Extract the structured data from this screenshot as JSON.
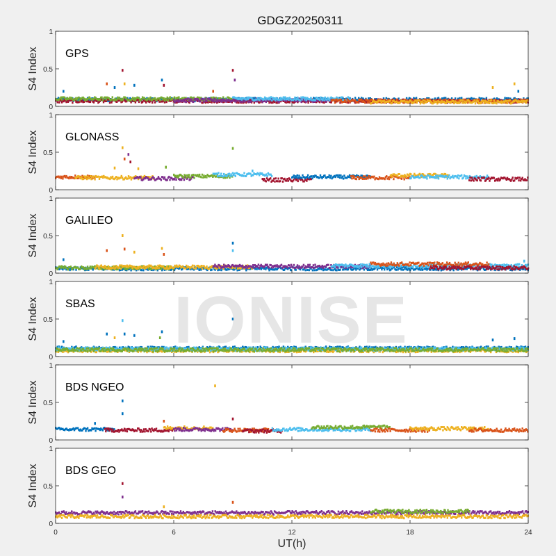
{
  "title": "GDGZ20250311",
  "watermark": "IONISE",
  "colors": {
    "blue": "#0072BD",
    "orange": "#D95319",
    "yellow": "#EDB120",
    "purple": "#7E2F8E",
    "green": "#77AC30",
    "cyan": "#4DBEEE",
    "maroon": "#A2142F"
  },
  "chart_data": [
    {
      "type": "scatter",
      "panel_label": "GPS",
      "ylabel": "S4 Index",
      "xlabel": "",
      "xlim": [
        0,
        24
      ],
      "ylim": [
        0,
        1
      ],
      "yticks": [
        0,
        0.5,
        1
      ],
      "ytick_labels": [
        "0",
        "0.5",
        "1"
      ],
      "baseline": 0.08,
      "segments": [
        {
          "x0": 0,
          "x1": 24,
          "y": 0.09,
          "color": "#0072BD"
        },
        {
          "x0": 0,
          "x1": 24,
          "y": 0.07,
          "color": "#A2142F"
        },
        {
          "x0": 0,
          "x1": 9,
          "y": 0.1,
          "color": "#77AC30"
        },
        {
          "x0": 6,
          "x1": 14,
          "y": 0.08,
          "color": "#7E2F8E"
        },
        {
          "x0": 9,
          "x1": 15,
          "y": 0.1,
          "color": "#4DBEEE"
        },
        {
          "x0": 14,
          "x1": 24,
          "y": 0.07,
          "color": "#D95319"
        },
        {
          "x0": 16,
          "x1": 24,
          "y": 0.06,
          "color": "#EDB120"
        }
      ],
      "spikes": [
        {
          "x": 0.4,
          "y": 0.2,
          "color": "#0072BD"
        },
        {
          "x": 2.6,
          "y": 0.3,
          "color": "#D95319"
        },
        {
          "x": 3.0,
          "y": 0.25,
          "color": "#0072BD"
        },
        {
          "x": 3.4,
          "y": 0.48,
          "color": "#A2142F"
        },
        {
          "x": 3.5,
          "y": 0.3,
          "color": "#EDB120"
        },
        {
          "x": 4.0,
          "y": 0.28,
          "color": "#0072BD"
        },
        {
          "x": 5.4,
          "y": 0.35,
          "color": "#0072BD"
        },
        {
          "x": 5.5,
          "y": 0.28,
          "color": "#A2142F"
        },
        {
          "x": 8.0,
          "y": 0.2,
          "color": "#D95319"
        },
        {
          "x": 9.0,
          "y": 0.48,
          "color": "#A2142F"
        },
        {
          "x": 9.1,
          "y": 0.35,
          "color": "#7E2F8E"
        },
        {
          "x": 22.2,
          "y": 0.25,
          "color": "#EDB120"
        },
        {
          "x": 23.3,
          "y": 0.3,
          "color": "#EDB120"
        },
        {
          "x": 23.5,
          "y": 0.2,
          "color": "#0072BD"
        }
      ]
    },
    {
      "type": "scatter",
      "panel_label": "GLONASS",
      "ylabel": "S4 Index",
      "xlabel": "",
      "xlim": [
        0,
        24
      ],
      "ylim": [
        0,
        1
      ],
      "yticks": [
        0,
        0.5,
        1
      ],
      "ytick_labels": [
        "0",
        "0.5",
        "1"
      ],
      "baseline": 0.15,
      "segments": [
        {
          "x0": 0,
          "x1": 2,
          "y": 0.17,
          "color": "#D95319"
        },
        {
          "x0": 1,
          "x1": 5,
          "y": 0.16,
          "color": "#EDB120"
        },
        {
          "x0": 4,
          "x1": 7,
          "y": 0.15,
          "color": "#7E2F8E"
        },
        {
          "x0": 6,
          "x1": 9,
          "y": 0.18,
          "color": "#77AC30"
        },
        {
          "x0": 8,
          "x1": 11,
          "y": 0.2,
          "color": "#4DBEEE"
        },
        {
          "x0": 10.5,
          "x1": 13,
          "y": 0.13,
          "color": "#A2142F"
        },
        {
          "x0": 12,
          "x1": 16,
          "y": 0.17,
          "color": "#0072BD"
        },
        {
          "x0": 15,
          "x1": 18,
          "y": 0.16,
          "color": "#D95319"
        },
        {
          "x0": 17,
          "x1": 20,
          "y": 0.19,
          "color": "#EDB120"
        },
        {
          "x0": 18,
          "x1": 22,
          "y": 0.17,
          "color": "#4DBEEE"
        },
        {
          "x0": 21,
          "x1": 24,
          "y": 0.14,
          "color": "#A2142F"
        }
      ],
      "spikes": [
        {
          "x": 3.0,
          "y": 0.29,
          "color": "#EDB120"
        },
        {
          "x": 3.4,
          "y": 0.56,
          "color": "#EDB120"
        },
        {
          "x": 3.5,
          "y": 0.41,
          "color": "#D95319"
        },
        {
          "x": 3.7,
          "y": 0.47,
          "color": "#7E2F8E"
        },
        {
          "x": 3.8,
          "y": 0.37,
          "color": "#A2142F"
        },
        {
          "x": 4.2,
          "y": 0.28,
          "color": "#EDB120"
        },
        {
          "x": 5.6,
          "y": 0.3,
          "color": "#77AC30"
        },
        {
          "x": 9.0,
          "y": 0.55,
          "color": "#77AC30"
        },
        {
          "x": 10.0,
          "y": 0.25,
          "color": "#4DBEEE"
        }
      ]
    },
    {
      "type": "scatter",
      "panel_label": "GALILEO",
      "ylabel": "S4 Index",
      "xlabel": "",
      "xlim": [
        0,
        24
      ],
      "ylim": [
        0,
        1
      ],
      "yticks": [
        0,
        0.5,
        1
      ],
      "ytick_labels": [
        "0",
        "0.5",
        "1"
      ],
      "baseline": 0.06,
      "segments": [
        {
          "x0": 0,
          "x1": 24,
          "y": 0.06,
          "color": "#0072BD"
        },
        {
          "x0": 0,
          "x1": 6,
          "y": 0.07,
          "color": "#77AC30"
        },
        {
          "x0": 2,
          "x1": 10,
          "y": 0.08,
          "color": "#EDB120"
        },
        {
          "x0": 8,
          "x1": 16,
          "y": 0.09,
          "color": "#7E2F8E"
        },
        {
          "x0": 14,
          "x1": 24,
          "y": 0.1,
          "color": "#4DBEEE"
        },
        {
          "x0": 16,
          "x1": 22,
          "y": 0.12,
          "color": "#D95319"
        },
        {
          "x0": 19,
          "x1": 24,
          "y": 0.07,
          "color": "#A2142F"
        }
      ],
      "spikes": [
        {
          "x": 0.4,
          "y": 0.18,
          "color": "#0072BD"
        },
        {
          "x": 2.6,
          "y": 0.3,
          "color": "#D95319"
        },
        {
          "x": 3.4,
          "y": 0.5,
          "color": "#EDB120"
        },
        {
          "x": 3.5,
          "y": 0.32,
          "color": "#D95319"
        },
        {
          "x": 4.0,
          "y": 0.28,
          "color": "#EDB120"
        },
        {
          "x": 5.4,
          "y": 0.33,
          "color": "#EDB120"
        },
        {
          "x": 5.5,
          "y": 0.25,
          "color": "#D95319"
        },
        {
          "x": 9.0,
          "y": 0.4,
          "color": "#0072BD"
        },
        {
          "x": 9.0,
          "y": 0.3,
          "color": "#4DBEEE"
        },
        {
          "x": 23.8,
          "y": 0.16,
          "color": "#4DBEEE"
        }
      ]
    },
    {
      "type": "scatter",
      "panel_label": "SBAS",
      "ylabel": "S4 Index",
      "xlabel": "",
      "xlim": [
        0,
        24
      ],
      "ylim": [
        0,
        1
      ],
      "yticks": [
        0,
        0.5,
        1
      ],
      "ytick_labels": [
        "0",
        "0.5",
        "1"
      ],
      "baseline": 0.1,
      "segments": [
        {
          "x0": 0,
          "x1": 24,
          "y": 0.11,
          "color": "#0072BD"
        },
        {
          "x0": 0,
          "x1": 24,
          "y": 0.08,
          "color": "#EDB120"
        },
        {
          "x0": 0,
          "x1": 24,
          "y": 0.1,
          "color": "#4DBEEE"
        },
        {
          "x0": 0,
          "x1": 24,
          "y": 0.09,
          "color": "#77AC30"
        }
      ],
      "spikes": [
        {
          "x": 0.4,
          "y": 0.2,
          "color": "#0072BD"
        },
        {
          "x": 2.6,
          "y": 0.3,
          "color": "#0072BD"
        },
        {
          "x": 3.0,
          "y": 0.25,
          "color": "#EDB120"
        },
        {
          "x": 3.4,
          "y": 0.48,
          "color": "#4DBEEE"
        },
        {
          "x": 3.5,
          "y": 0.3,
          "color": "#0072BD"
        },
        {
          "x": 4.0,
          "y": 0.28,
          "color": "#0072BD"
        },
        {
          "x": 5.4,
          "y": 0.33,
          "color": "#0072BD"
        },
        {
          "x": 5.3,
          "y": 0.25,
          "color": "#77AC30"
        },
        {
          "x": 9.0,
          "y": 0.5,
          "color": "#0072BD"
        },
        {
          "x": 22.2,
          "y": 0.22,
          "color": "#0072BD"
        },
        {
          "x": 23.3,
          "y": 0.24,
          "color": "#0072BD"
        }
      ]
    },
    {
      "type": "scatter",
      "panel_label": "BDS NGEO",
      "ylabel": "S4 Index",
      "xlabel": "",
      "xlim": [
        0,
        24
      ],
      "ylim": [
        0,
        1
      ],
      "yticks": [
        0,
        0.5,
        1
      ],
      "ytick_labels": [
        "0",
        "0.5",
        "1"
      ],
      "baseline": 0.14,
      "segments": [
        {
          "x0": 0,
          "x1": 3,
          "y": 0.14,
          "color": "#0072BD"
        },
        {
          "x0": 2.5,
          "x1": 6,
          "y": 0.13,
          "color": "#A2142F"
        },
        {
          "x0": 5.5,
          "x1": 8,
          "y": 0.16,
          "color": "#EDB120"
        },
        {
          "x0": 6,
          "x1": 9,
          "y": 0.14,
          "color": "#7E2F8E"
        },
        {
          "x0": 8.5,
          "x1": 11,
          "y": 0.13,
          "color": "#D95319"
        },
        {
          "x0": 9.5,
          "x1": 11.5,
          "y": 0.12,
          "color": "#A2142F"
        },
        {
          "x0": 11,
          "x1": 16,
          "y": 0.14,
          "color": "#4DBEEE"
        },
        {
          "x0": 13,
          "x1": 17,
          "y": 0.17,
          "color": "#77AC30"
        },
        {
          "x0": 16,
          "x1": 19,
          "y": 0.13,
          "color": "#D95319"
        },
        {
          "x0": 18,
          "x1": 22,
          "y": 0.15,
          "color": "#EDB120"
        },
        {
          "x0": 21,
          "x1": 24,
          "y": 0.13,
          "color": "#D95319"
        }
      ],
      "spikes": [
        {
          "x": 2.0,
          "y": 0.22,
          "color": "#0072BD"
        },
        {
          "x": 3.4,
          "y": 0.52,
          "color": "#0072BD"
        },
        {
          "x": 3.4,
          "y": 0.35,
          "color": "#0072BD"
        },
        {
          "x": 5.5,
          "y": 0.25,
          "color": "#D95319"
        },
        {
          "x": 8.1,
          "y": 0.72,
          "color": "#EDB120"
        },
        {
          "x": 9.0,
          "y": 0.28,
          "color": "#A2142F"
        }
      ]
    },
    {
      "type": "scatter",
      "panel_label": "BDS GEO",
      "ylabel": "S4 Index",
      "xlabel": "UT(h)",
      "xlim": [
        0,
        24
      ],
      "ylim": [
        0,
        1
      ],
      "yticks": [
        0,
        0.5,
        1
      ],
      "ytick_labels": [
        "0",
        "0.5",
        "1"
      ],
      "xticks": [
        0,
        6,
        12,
        18,
        24
      ],
      "xtick_labels": [
        "0",
        "6",
        "12",
        "18",
        "24"
      ],
      "baseline": 0.13,
      "segments": [
        {
          "x0": 0,
          "x1": 24,
          "y": 0.14,
          "color": "#7E2F8E"
        },
        {
          "x0": 0,
          "x1": 24,
          "y": 0.09,
          "color": "#EDB120"
        },
        {
          "x0": 16,
          "x1": 21,
          "y": 0.16,
          "color": "#77AC30"
        }
      ],
      "spikes": [
        {
          "x": 3.4,
          "y": 0.53,
          "color": "#A2142F"
        },
        {
          "x": 3.4,
          "y": 0.35,
          "color": "#7E2F8E"
        },
        {
          "x": 5.5,
          "y": 0.22,
          "color": "#EDB120"
        },
        {
          "x": 9.0,
          "y": 0.28,
          "color": "#D95319"
        }
      ]
    }
  ]
}
